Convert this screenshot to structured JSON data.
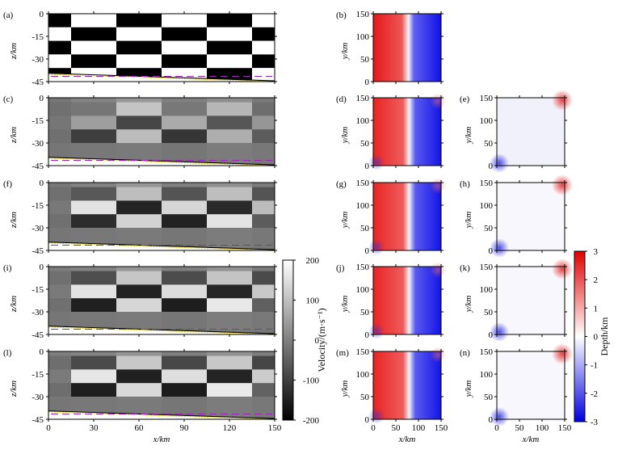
{
  "chart_data": {
    "type": "heatmap",
    "section_panels": [
      {
        "label": "(a)",
        "kind": "true-checkerboard"
      },
      {
        "label": "(c)",
        "kind": "inversion"
      },
      {
        "label": "(f)",
        "kind": "inversion"
      },
      {
        "label": "(i)",
        "kind": "inversion"
      },
      {
        "label": "(l)",
        "kind": "inversion"
      }
    ],
    "depth_panels": [
      {
        "label": "(b)",
        "kind": "true-depth"
      },
      {
        "label": "(d)",
        "kind": "inverted-depth"
      },
      {
        "label": "(g)",
        "kind": "inverted-depth"
      },
      {
        "label": "(j)",
        "kind": "inverted-depth"
      },
      {
        "label": "(m)",
        "kind": "inverted-depth"
      }
    ],
    "error_panels": [
      {
        "label": "(e)"
      },
      {
        "label": "(h)"
      },
      {
        "label": "(k)"
      },
      {
        "label": "(n)"
      }
    ],
    "section_axes": {
      "xlabel": "x/km",
      "ylabel": "z/km",
      "xlim": [
        0,
        150
      ],
      "ylim": [
        -45,
        0
      ],
      "xticks": [
        0,
        30,
        60,
        90,
        120,
        150
      ],
      "yticks": [
        0,
        -15,
        -30,
        -45
      ],
      "interface_depth_left": -39.5,
      "interface_depth_right": -44.5,
      "dashed_level": -41.5
    },
    "map_axes": {
      "xlabel": "x/km",
      "ylabel": "y/km",
      "xlim": [
        0,
        150
      ],
      "ylim": [
        0,
        150
      ],
      "xticks": [
        0,
        50,
        100,
        150
      ],
      "yticks": [
        0,
        50,
        100,
        150
      ]
    },
    "checker_x_edges": [
      0,
      15,
      45,
      75,
      105,
      135,
      150
    ],
    "checker_z_edges": [
      0,
      -3,
      -12,
      -21,
      -30,
      -39,
      -45
    ],
    "velocity_colorbar": {
      "label": "Velocity/(m·s⁻¹)",
      "range": [
        -200,
        200
      ],
      "ticks": [
        200,
        100,
        0,
        -100,
        -200
      ]
    },
    "depth_colorbar": {
      "label": "Depth/km",
      "range": [
        -3,
        3
      ],
      "ticks": [
        3,
        2,
        1,
        0,
        -1,
        -2,
        -3
      ]
    },
    "colors": {
      "red": "#e51818",
      "blue": "#1010e8",
      "interface_black": "#000000",
      "interface_yellow": "#f2d400",
      "dashed_purple": "#a020c0"
    }
  }
}
